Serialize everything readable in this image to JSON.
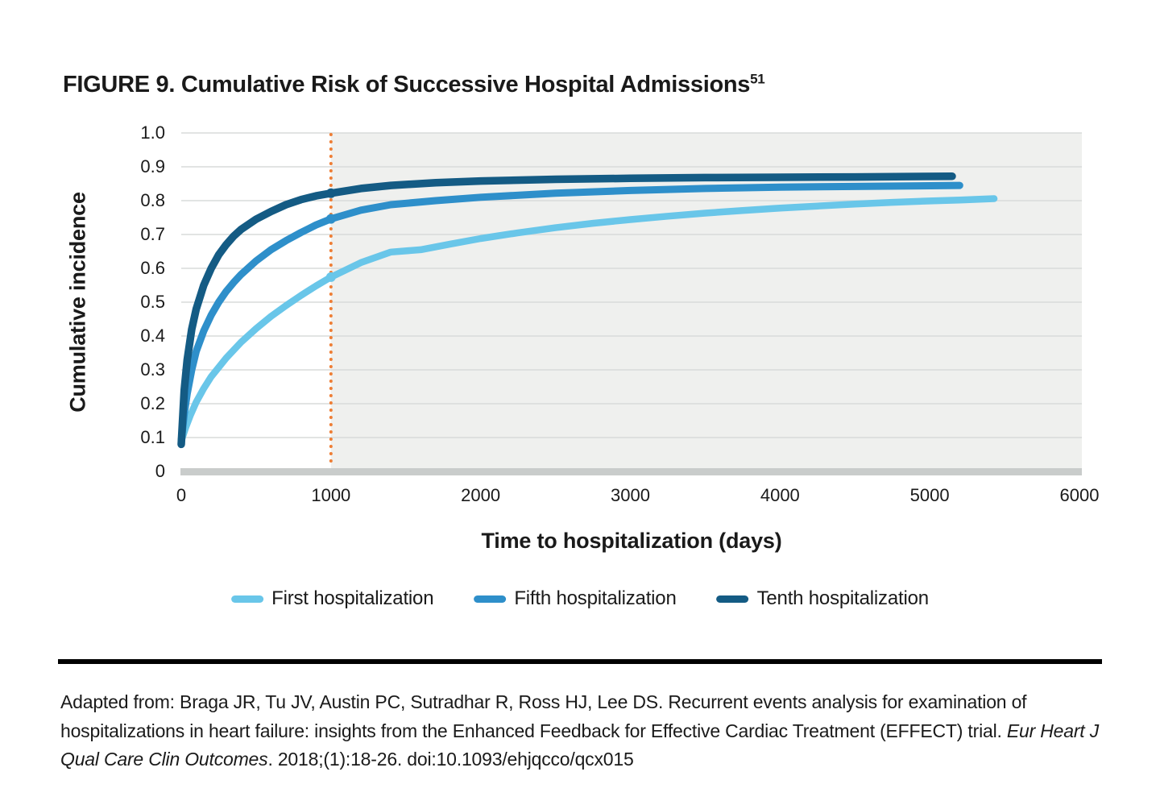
{
  "figure": {
    "title_label": "FIGURE 9.",
    "title_text": " Cumulative Risk of Successive Hospital Admissions",
    "title_superscript": "51"
  },
  "chart_data": {
    "type": "line",
    "title": "FIGURE 9. Cumulative Risk of Successive Hospital Admissions",
    "xlabel": "Time to hospitalization (days)",
    "ylabel": "Cumulative incidence",
    "xlim": [
      0,
      6000
    ],
    "ylim": [
      0,
      1.0
    ],
    "grid": true,
    "legend_position": "bottom",
    "x_ticks": [
      "0",
      "1000",
      "2000",
      "3000",
      "4000",
      "5000",
      "6000"
    ],
    "y_ticks": [
      {
        "label": "1.0",
        "value": 1.0
      },
      {
        "label": "0.9",
        "value": 0.9
      },
      {
        "label": "0.8",
        "value": 0.8
      },
      {
        "label": "0.7",
        "value": 0.7
      },
      {
        "label": "0.6",
        "value": 0.6
      },
      {
        "label": "0.5",
        "value": 0.5
      },
      {
        "label": "0.4",
        "value": 0.4
      },
      {
        "label": "0.3",
        "value": 0.3
      },
      {
        "label": "0.2",
        "value": 0.2
      },
      {
        "label": "0.1",
        "value": 0.1
      },
      {
        "label": "0",
        "value": 0
      }
    ],
    "colors": {
      "plot_shaded_background": "#EFF0EE",
      "gridline": "#D8DBDA",
      "axis_baseline": "#C9CCCB",
      "reference_line": "#EE7E35",
      "text": "#1A1A1A"
    },
    "reference_line": {
      "x": 1000,
      "style": "dotted",
      "color": "#EE7E35"
    },
    "shaded_region": {
      "from_x": 1000,
      "to_x": 6015,
      "color": "#EFF0EE"
    },
    "series": [
      {
        "name": "First hospitalization",
        "color": "#69C6E9",
        "line_width": 8.5,
        "marker_at_reference": 0.574,
        "points": [
          [
            0,
            0.09
          ],
          [
            30,
            0.13
          ],
          [
            60,
            0.165
          ],
          [
            100,
            0.205
          ],
          [
            150,
            0.245
          ],
          [
            200,
            0.28
          ],
          [
            300,
            0.335
          ],
          [
            400,
            0.382
          ],
          [
            500,
            0.422
          ],
          [
            600,
            0.458
          ],
          [
            700,
            0.49
          ],
          [
            800,
            0.52
          ],
          [
            900,
            0.548
          ],
          [
            1000,
            0.574
          ],
          [
            1200,
            0.617
          ],
          [
            1400,
            0.648
          ],
          [
            1600,
            0.655
          ],
          [
            1800,
            0.672
          ],
          [
            2000,
            0.688
          ],
          [
            2250,
            0.705
          ],
          [
            2500,
            0.72
          ],
          [
            2750,
            0.733
          ],
          [
            3000,
            0.744
          ],
          [
            3250,
            0.754
          ],
          [
            3500,
            0.763
          ],
          [
            3750,
            0.771
          ],
          [
            4000,
            0.778
          ],
          [
            4250,
            0.784
          ],
          [
            4500,
            0.79
          ],
          [
            4750,
            0.795
          ],
          [
            5000,
            0.799
          ],
          [
            5200,
            0.802
          ],
          [
            5430,
            0.806
          ]
        ]
      },
      {
        "name": "Fifth hospitalization",
        "color": "#2E8FCA",
        "line_width": 9,
        "marker_at_reference": 0.746,
        "points": [
          [
            0,
            0.09
          ],
          [
            20,
            0.17
          ],
          [
            40,
            0.23
          ],
          [
            70,
            0.3
          ],
          [
            100,
            0.355
          ],
          [
            150,
            0.415
          ],
          [
            200,
            0.462
          ],
          [
            250,
            0.5
          ],
          [
            300,
            0.532
          ],
          [
            350,
            0.558
          ],
          [
            400,
            0.582
          ],
          [
            500,
            0.622
          ],
          [
            600,
            0.655
          ],
          [
            700,
            0.682
          ],
          [
            800,
            0.706
          ],
          [
            900,
            0.728
          ],
          [
            1000,
            0.746
          ],
          [
            1200,
            0.772
          ],
          [
            1400,
            0.788
          ],
          [
            1700,
            0.8
          ],
          [
            2000,
            0.81
          ],
          [
            2500,
            0.822
          ],
          [
            3000,
            0.83
          ],
          [
            3500,
            0.836
          ],
          [
            4000,
            0.84
          ],
          [
            4500,
            0.842
          ],
          [
            5200,
            0.845
          ]
        ]
      },
      {
        "name": "Tenth hospitalization",
        "color": "#145B84",
        "line_width": 9.5,
        "marker_at_reference": 0.822,
        "points": [
          [
            0,
            0.08
          ],
          [
            20,
            0.24
          ],
          [
            40,
            0.33
          ],
          [
            70,
            0.42
          ],
          [
            100,
            0.48
          ],
          [
            150,
            0.55
          ],
          [
            200,
            0.6
          ],
          [
            250,
            0.64
          ],
          [
            300,
            0.67
          ],
          [
            350,
            0.695
          ],
          [
            400,
            0.715
          ],
          [
            500,
            0.745
          ],
          [
            600,
            0.768
          ],
          [
            700,
            0.788
          ],
          [
            800,
            0.803
          ],
          [
            900,
            0.814
          ],
          [
            1000,
            0.822
          ],
          [
            1200,
            0.836
          ],
          [
            1400,
            0.845
          ],
          [
            1700,
            0.853
          ],
          [
            2000,
            0.858
          ],
          [
            2500,
            0.863
          ],
          [
            3000,
            0.866
          ],
          [
            3500,
            0.868
          ],
          [
            4000,
            0.869
          ],
          [
            4500,
            0.87
          ],
          [
            5150,
            0.872
          ]
        ]
      }
    ]
  },
  "citation": {
    "before_italic": "Adapted from: Braga JR, Tu JV, Austin PC, Sutradhar R, Ross HJ, Lee DS. Recurrent events analysis for examination of hospitalizations in heart failure: insights from the Enhanced Feedback for Effective Cardiac Treatment (EFFECT) trial. ",
    "italic": "Eur Heart J Qual Care Clin Outcomes",
    "after_italic": ". 2018;(1):18-26. doi:10.1093/ehjqcco/qcx015"
  }
}
